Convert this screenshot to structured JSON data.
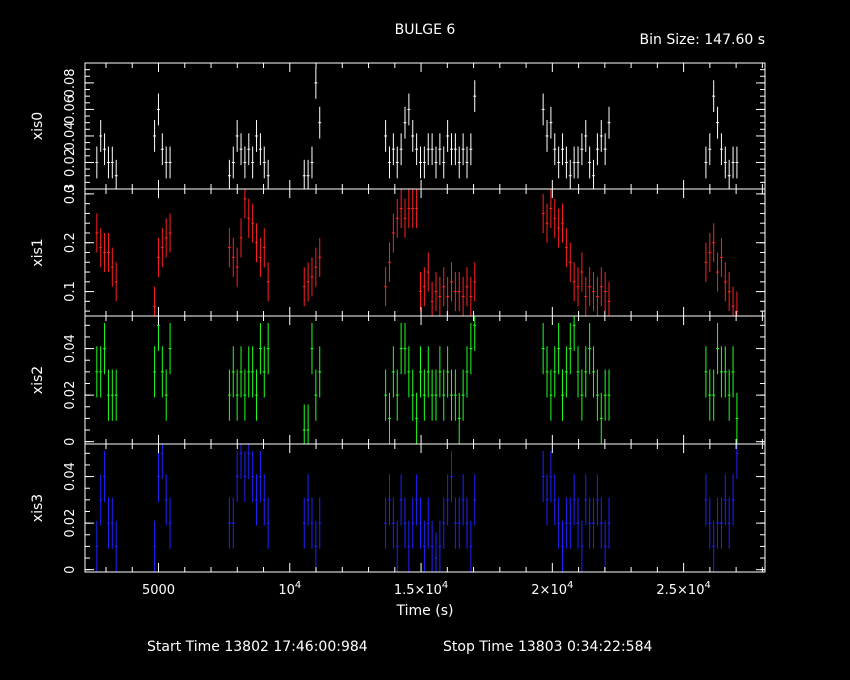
{
  "header": {
    "title": "BULGE 6",
    "bin_size": "Bin Size: 147.60 s"
  },
  "footer": {
    "start": "Start Time 13802 17:46:00:984",
    "stop": "Stop Time 13803  0:34:22:584"
  },
  "chart_data": {
    "type": "scatter",
    "xlabel": "Time (s)",
    "xlim": [
      2200,
      28100
    ],
    "x_ticks": [
      {
        "v": 5000,
        "base": "5000",
        "exp": ""
      },
      {
        "v": 10000,
        "base": "10",
        "exp": "4"
      },
      {
        "v": 15000,
        "base": "1.5×10",
        "exp": "4"
      },
      {
        "v": 20000,
        "base": "2×10",
        "exp": "4"
      },
      {
        "v": 25000,
        "base": "2.5×10",
        "exp": "4"
      }
    ],
    "x_minor_step": 1000,
    "series": [
      {
        "name": "xis0",
        "color": "#ffffff",
        "ylim": [
          0.0,
          0.095
        ],
        "yticks": [
          0,
          0.02,
          0.04,
          0.06,
          0.08
        ],
        "ytick_labels": [
          "0",
          "0.02",
          "0.04",
          "0.06",
          "0.08"
        ],
        "yminor_step": 0.005
      },
      {
        "name": "xis1",
        "color": "#ff2020",
        "ylim": [
          0.05,
          0.31
        ],
        "yticks": [
          0.1,
          0.2,
          0.3
        ],
        "ytick_labels": [
          "0.1",
          "0.2",
          "0.3"
        ],
        "yminor_step": 0.02
      },
      {
        "name": "xis2",
        "color": "#20ff20",
        "ylim": [
          -0.001,
          0.054
        ],
        "yticks": [
          0,
          0.02,
          0.04
        ],
        "ytick_labels": [
          "0",
          "0.02",
          "0.04"
        ],
        "yminor_step": 0.005
      },
      {
        "name": "xis3",
        "color": "#2020ff",
        "ylim": [
          -0.001,
          0.054
        ],
        "yticks": [
          0,
          0.02,
          0.04
        ],
        "ytick_labels": [
          "0",
          "0.02",
          "0.04"
        ],
        "yminor_step": 0.005
      }
    ],
    "segments": [
      {
        "start": 2650,
        "n": 6
      },
      {
        "start": 4850,
        "n": 5
      },
      {
        "start": 7700,
        "n": 11
      },
      {
        "start": 10550,
        "n": 5
      },
      {
        "start": 13650,
        "n": 24
      },
      {
        "start": 19650,
        "n": 18
      },
      {
        "start": 25850,
        "n": 9
      }
    ],
    "bin_width": 147.6,
    "values": {
      "xis0": [
        [
          0.02,
          0.04,
          0.03,
          0.02,
          0.02,
          0.01
        ],
        [
          0.04,
          0.06,
          0.03,
          0.02,
          0.02
        ],
        [
          0.01,
          0.02,
          0.04,
          0.03,
          0.02,
          0.03,
          0.02,
          0.04,
          0.03,
          0.02,
          0.01
        ],
        [
          0.01,
          0.01,
          0.02,
          0.08,
          0.05
        ],
        [
          0.04,
          0.02,
          0.03,
          0.02,
          0.03,
          0.05,
          0.06,
          0.04,
          0.03,
          0.02,
          0.02,
          0.03,
          0.03,
          0.02,
          0.03,
          0.02,
          0.04,
          0.03,
          0.03,
          0.02,
          0.03,
          0.02,
          0.03,
          0.07
        ],
        [
          0.06,
          0.04,
          0.05,
          0.03,
          0.02,
          0.03,
          0.02,
          0.01,
          0.02,
          0.02,
          0.03,
          0.04,
          0.02,
          0.01,
          0.03,
          0.04,
          0.03,
          0.05
        ],
        [
          0.02,
          0.03,
          0.07,
          0.05,
          0.03,
          0.02,
          0.01,
          0.02,
          0.02
        ]
      ],
      "xis1": [
        [
          0.22,
          0.19,
          0.18,
          0.18,
          0.15,
          0.12
        ],
        [
          0.07,
          0.17,
          0.19,
          0.21,
          0.22
        ],
        [
          0.19,
          0.17,
          0.15,
          0.21,
          0.29,
          0.25,
          0.24,
          0.2,
          0.17,
          0.19,
          0.12
        ],
        [
          0.11,
          0.12,
          0.13,
          0.15,
          0.17
        ],
        [
          0.11,
          0.16,
          0.22,
          0.25,
          0.27,
          0.25,
          0.27,
          0.27,
          0.27,
          0.1,
          0.11,
          0.14,
          0.08,
          0.1,
          0.09,
          0.11,
          0.09,
          0.12,
          0.1,
          0.1,
          0.09,
          0.11,
          0.09,
          0.12
        ],
        [
          0.26,
          0.24,
          0.27,
          0.25,
          0.23,
          0.24,
          0.19,
          0.16,
          0.12,
          0.11,
          0.14,
          0.09,
          0.11,
          0.1,
          0.09,
          0.11,
          0.1,
          0.08
        ],
        [
          0.16,
          0.18,
          0.2,
          0.14,
          0.17,
          0.12,
          0.1,
          0.07,
          0.06
        ]
      ],
      "xis2": [
        [
          0.03,
          0.03,
          0.04,
          0.02,
          0.02,
          0.02
        ],
        [
          0.03,
          0.05,
          0.03,
          0.02,
          0.04
        ],
        [
          0.02,
          0.03,
          0.02,
          0.03,
          0.02,
          0.03,
          0.03,
          0.02,
          0.04,
          0.03,
          0.04
        ],
        [
          0.005,
          0.005,
          0.04,
          0.02,
          0.03
        ],
        [
          0.02,
          0.01,
          0.03,
          0.02,
          0.04,
          0.04,
          0.03,
          0.02,
          0.01,
          0.03,
          0.02,
          0.03,
          0.02,
          0.02,
          0.03,
          0.02,
          0.03,
          0.02,
          0.02,
          0.01,
          0.02,
          0.03,
          0.04,
          0.05
        ],
        [
          0.04,
          0.03,
          0.02,
          0.03,
          0.04,
          0.02,
          0.03,
          0.04,
          0.05,
          0.03,
          0.02,
          0.03,
          0.04,
          0.03,
          0.02,
          0.01,
          0.02,
          0.02
        ],
        [
          0.03,
          0.02,
          0.02,
          0.04,
          0.03,
          0.03,
          0.02,
          0.03,
          0.01
        ]
      ],
      "xis3": [
        [
          0.01,
          0.03,
          0.04,
          0.02,
          0.02,
          0.01
        ],
        [
          0.01,
          0.04,
          0.05,
          0.03,
          0.02
        ],
        [
          0.02,
          0.02,
          0.04,
          0.05,
          0.04,
          0.05,
          0.04,
          0.03,
          0.04,
          0.03,
          0.02
        ],
        [
          0.02,
          0.03,
          0.02,
          0.01,
          0.02
        ],
        [
          0.02,
          0.03,
          0.02,
          0.01,
          0.03,
          0.02,
          0.01,
          0.02,
          0.03,
          0.02,
          0.01,
          0.02,
          0.01,
          0.005,
          0.01,
          0.02,
          0.03,
          0.04,
          0.02,
          0.02,
          0.03,
          0.02,
          0.01,
          0.03
        ],
        [
          0.04,
          0.03,
          0.04,
          0.03,
          0.02,
          0.01,
          0.02,
          0.02,
          0.03,
          0.02,
          0.01,
          0.03,
          0.02,
          0.02,
          0.03,
          0.02,
          0.01,
          0.02
        ],
        [
          0.03,
          0.02,
          0.01,
          0.02,
          0.02,
          0.03,
          0.02,
          0.03,
          0.05
        ]
      ]
    }
  }
}
